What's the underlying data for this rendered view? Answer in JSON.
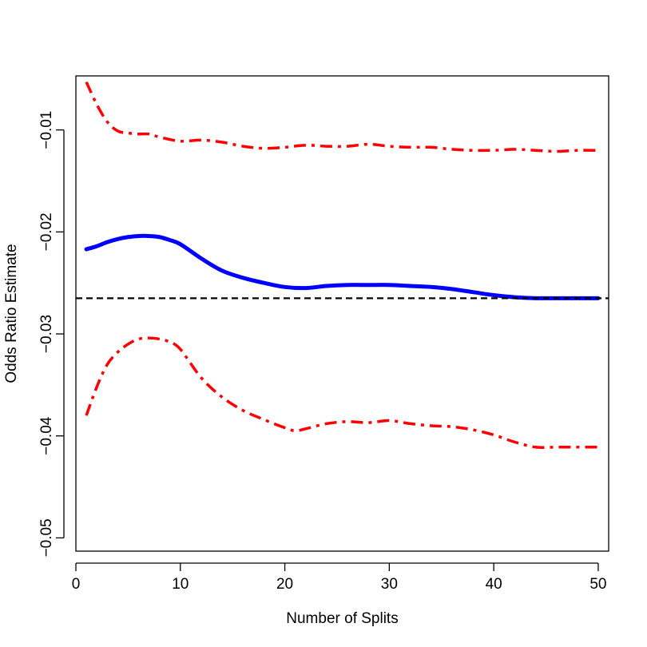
{
  "chart_data": {
    "type": "line",
    "title": "",
    "xlabel": "Number of Splits",
    "ylabel": "Odds Ratio Estimate",
    "xlim": [
      0,
      51
    ],
    "ylim": [
      -0.0513,
      -0.0047
    ],
    "xticks": [
      0,
      10,
      20,
      30,
      40,
      50
    ],
    "xtick_labels": [
      "0",
      "10",
      "20",
      "30",
      "40",
      "50"
    ],
    "yticks": [
      -0.05,
      -0.04,
      -0.03,
      -0.02,
      -0.01
    ],
    "ytick_labels": [
      "−0.05",
      "−0.04",
      "−0.03",
      "−0.02",
      "−0.01"
    ],
    "grid": false,
    "legend": "none",
    "reference_line": {
      "y": -0.0265,
      "color": "#000000",
      "style": "dashed"
    },
    "series": [
      {
        "role": "estimate",
        "color": "#0000ff",
        "style": "solid",
        "x": [
          1,
          2,
          3,
          4,
          5,
          6,
          7,
          8,
          9,
          10,
          12,
          14,
          16,
          18,
          20,
          22,
          24,
          26,
          28,
          30,
          32,
          34,
          36,
          38,
          40,
          42,
          44,
          46,
          48,
          50
        ],
        "y": [
          -0.0217,
          -0.0214,
          -0.021,
          -0.0207,
          -0.0205,
          -0.0204,
          -0.0204,
          -0.0205,
          -0.0208,
          -0.0212,
          -0.0226,
          -0.0238,
          -0.0245,
          -0.025,
          -0.0254,
          -0.0255,
          -0.0253,
          -0.0252,
          -0.0252,
          -0.0252,
          -0.0253,
          -0.0254,
          -0.0256,
          -0.0259,
          -0.0262,
          -0.0264,
          -0.0265,
          -0.0265,
          -0.0265,
          -0.0265
        ]
      },
      {
        "role": "upper-bound",
        "color": "#ff0000",
        "style": "dashdot",
        "x": [
          1,
          2,
          3,
          4,
          5,
          6,
          7,
          8,
          10,
          12,
          14,
          16,
          18,
          20,
          22,
          24,
          26,
          28,
          30,
          32,
          34,
          36,
          38,
          40,
          42,
          44,
          46,
          48,
          50
        ],
        "y": [
          -0.0053,
          -0.0075,
          -0.0092,
          -0.0101,
          -0.0103,
          -0.0104,
          -0.0104,
          -0.0107,
          -0.0111,
          -0.011,
          -0.0112,
          -0.0116,
          -0.0118,
          -0.0117,
          -0.0115,
          -0.0116,
          -0.0116,
          -0.0114,
          -0.0116,
          -0.0117,
          -0.0117,
          -0.0119,
          -0.012,
          -0.012,
          -0.0119,
          -0.012,
          -0.0121,
          -0.012,
          -0.012
        ]
      },
      {
        "role": "lower-bound",
        "color": "#ff0000",
        "style": "dashdot",
        "x": [
          1,
          2,
          3,
          4,
          5,
          6,
          7,
          8,
          9,
          10,
          12,
          14,
          16,
          18,
          20,
          21,
          22,
          24,
          26,
          28,
          30,
          32,
          34,
          36,
          38,
          40,
          42,
          44,
          46,
          48,
          50
        ],
        "y": [
          -0.038,
          -0.0352,
          -0.033,
          -0.0318,
          -0.031,
          -0.0305,
          -0.0304,
          -0.0305,
          -0.0308,
          -0.0315,
          -0.0343,
          -0.0362,
          -0.0375,
          -0.0384,
          -0.0392,
          -0.0395,
          -0.0393,
          -0.0388,
          -0.0386,
          -0.0387,
          -0.0385,
          -0.0388,
          -0.039,
          -0.0391,
          -0.0394,
          -0.0399,
          -0.0406,
          -0.0411,
          -0.0411,
          -0.0411,
          -0.0411
        ]
      }
    ]
  }
}
